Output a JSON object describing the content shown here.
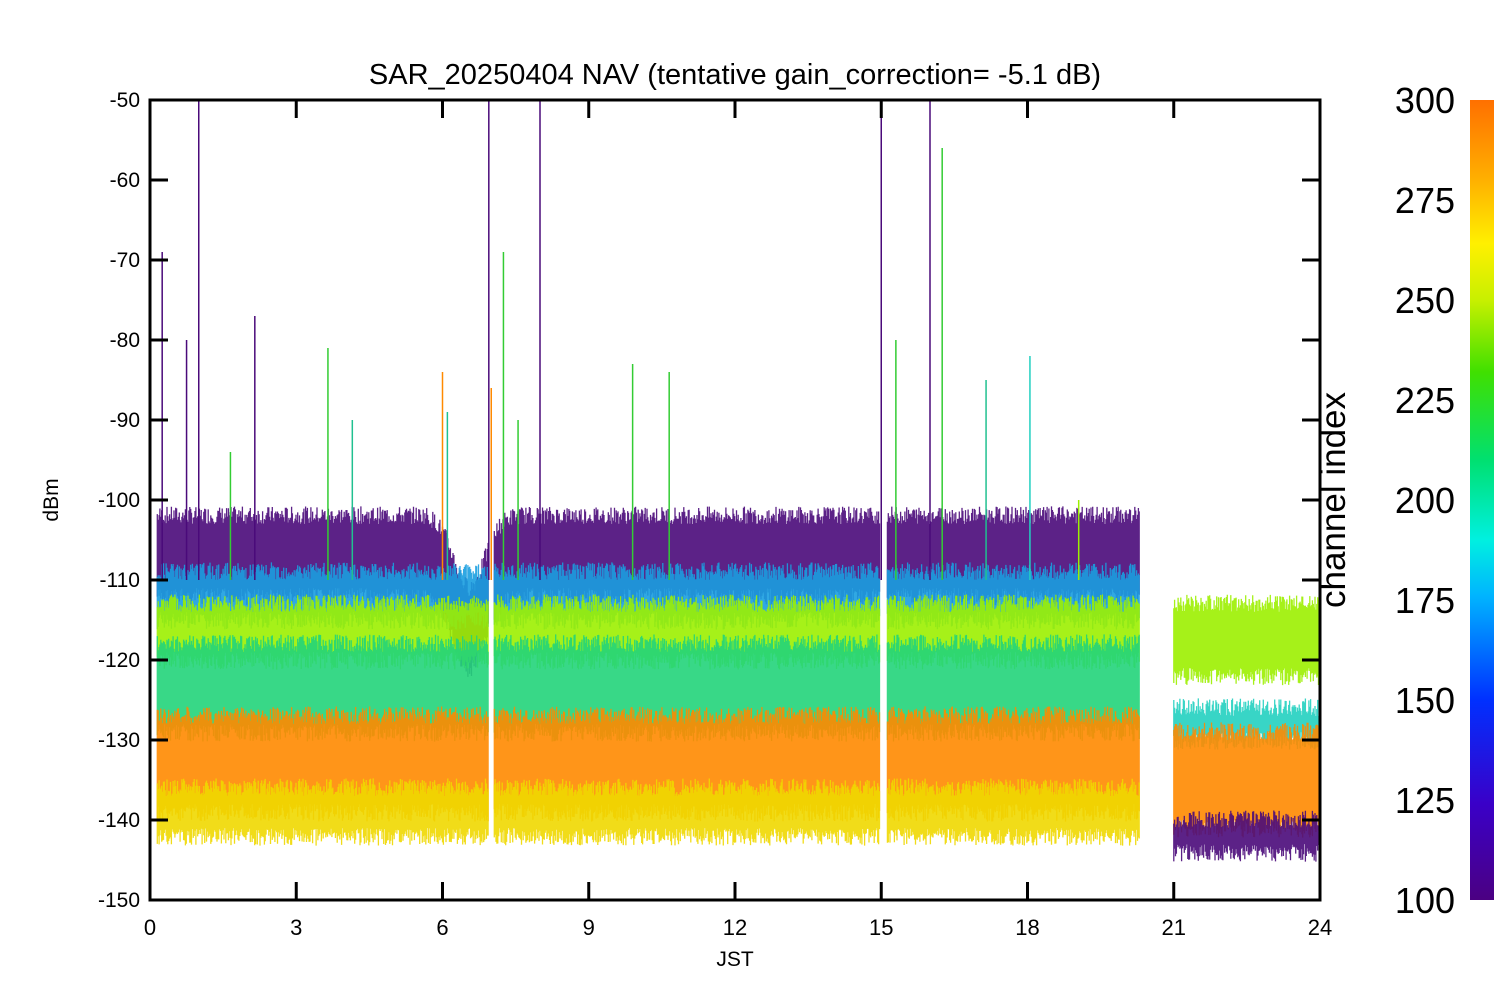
{
  "chart_data": {
    "type": "line",
    "title": "SAR_20250404 NAV (tentative gain_correction= -5.1 dB)",
    "xlabel": "JST",
    "ylabel": "dBm",
    "xlim": [
      0,
      24
    ],
    "ylim": [
      -150,
      -50
    ],
    "x_ticks": [
      "0",
      "3",
      "6",
      "9",
      "12",
      "15",
      "18",
      "21",
      "24"
    ],
    "y_ticks": [
      "-50",
      "-60",
      "-70",
      "-80",
      "-90",
      "-100",
      "-110",
      "-120",
      "-130",
      "-140",
      "-150"
    ],
    "grid": false,
    "colorbar": {
      "label": "channel index",
      "range": [
        100,
        300
      ],
      "ticks": [
        "100",
        "125",
        "150",
        "175",
        "200",
        "225",
        "250",
        "275",
        "300"
      ],
      "colormap": "rainbow (purple-blue-cyan-green-yellow-orange)"
    },
    "data_gaps_jst": [
      [
        6.95,
        7.05
      ],
      [
        14.98,
        15.12
      ],
      [
        20.3,
        21.0
      ]
    ],
    "bands": [
      {
        "channels": "100-130",
        "color": "#4a0a7a",
        "level_dbm": [
          -111,
          -103
        ],
        "note": "dips to about -114 dBm near 6.5 JST"
      },
      {
        "channels": "150-190",
        "color": "#1a9fe0",
        "level_dbm": [
          -114,
          -110
        ]
      },
      {
        "channels": "250-265",
        "color": "#9cf000",
        "level_dbm": [
          -119,
          -114
        ]
      },
      {
        "channels": "180-240",
        "color": "#22d47a",
        "level_dbm": [
          -128,
          -119
        ]
      },
      {
        "channels": "280-300",
        "color": "#ff8a00",
        "level_dbm": [
          -138,
          -128
        ]
      },
      {
        "channels": "260-280",
        "color": "#f0d800",
        "level_dbm": [
          -141,
          -137
        ]
      }
    ],
    "late_segment": {
      "x_range": [
        21.0,
        24.0
      ],
      "bands": [
        {
          "color": "#9cf000",
          "level_dbm": [
            -121,
            -114
          ]
        },
        {
          "color": "#22d0c0",
          "level_dbm": [
            -129,
            -127
          ]
        },
        {
          "color": "#ff8a00",
          "level_dbm": [
            -140,
            -130
          ]
        },
        {
          "color": "#4a0a7a",
          "level_dbm": [
            -143,
            -141
          ]
        }
      ]
    },
    "spikes": [
      {
        "x": 0.25,
        "y": -69,
        "color": "#4a0a7a"
      },
      {
        "x": 0.75,
        "y": -80,
        "color": "#4a0a7a"
      },
      {
        "x": 1.0,
        "y": -50,
        "color": "#4a0a7a"
      },
      {
        "x": 1.65,
        "y": -94,
        "color": "#33cc33"
      },
      {
        "x": 2.15,
        "y": -77,
        "color": "#4a0a7a"
      },
      {
        "x": 3.65,
        "y": -81,
        "color": "#33cc33"
      },
      {
        "x": 4.15,
        "y": -90,
        "color": "#20c090"
      },
      {
        "x": 6.0,
        "y": -84,
        "color": "#ff8a00"
      },
      {
        "x": 6.1,
        "y": -89,
        "color": "#20c090"
      },
      {
        "x": 6.95,
        "y": -50,
        "color": "#4a0a7a"
      },
      {
        "x": 7.0,
        "y": -86,
        "color": "#ff8a00"
      },
      {
        "x": 7.25,
        "y": -69,
        "color": "#33cc33"
      },
      {
        "x": 7.55,
        "y": -90,
        "color": "#33cc33"
      },
      {
        "x": 8.0,
        "y": -50,
        "color": "#4a0a7a"
      },
      {
        "x": 9.9,
        "y": -83,
        "color": "#33cc33"
      },
      {
        "x": 10.65,
        "y": -84,
        "color": "#33cc33"
      },
      {
        "x": 15.0,
        "y": -50,
        "color": "#4a0a7a"
      },
      {
        "x": 15.3,
        "y": -80,
        "color": "#33cc33"
      },
      {
        "x": 16.0,
        "y": -50,
        "color": "#4a0a7a"
      },
      {
        "x": 16.25,
        "y": -56,
        "color": "#33cc33"
      },
      {
        "x": 17.15,
        "y": -85,
        "color": "#20c090"
      },
      {
        "x": 18.05,
        "y": -82,
        "color": "#22d0c0"
      },
      {
        "x": 19.05,
        "y": -100,
        "color": "#9cf000"
      }
    ]
  }
}
